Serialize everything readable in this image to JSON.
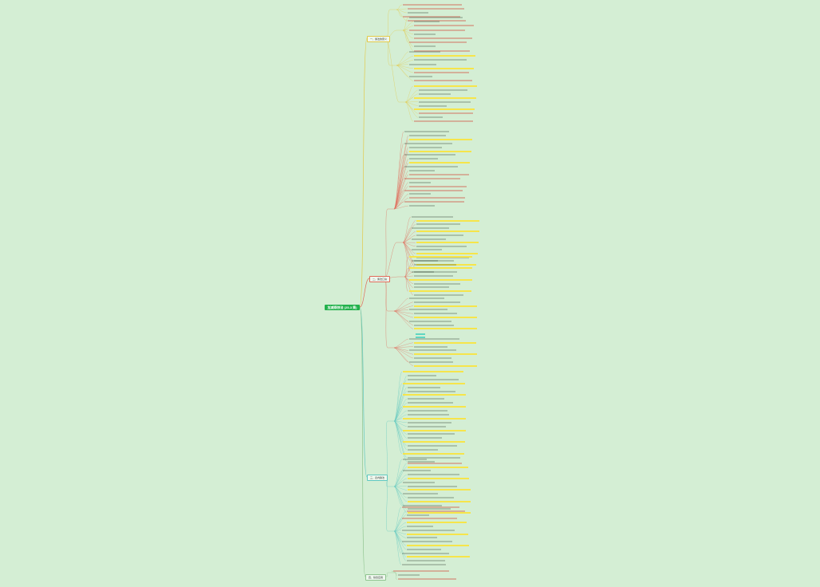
{
  "root": {
    "label": "加减乘除法 (25-3 乘)"
  },
  "topics": [
    {
      "id": "t1",
      "label": "一、乘法的意义"
    },
    {
      "id": "t2",
      "label": "二、乘法口诀"
    },
    {
      "id": "t3",
      "label": "三、表内除法"
    },
    {
      "id": "t4",
      "label": "四、综合应用"
    }
  ],
  "colors": {
    "root_fill": "#22b14c",
    "background": "#d4eed4",
    "branch_yellow": "#e2c94a",
    "branch_red": "#e06b5a",
    "branch_cyan": "#5fc7c0",
    "branch_green": "#8fc48f",
    "highlight_yellow": "#f6e54a",
    "highlight_cyan": "#5fd6c2",
    "text_red": "#d23b2f"
  }
}
